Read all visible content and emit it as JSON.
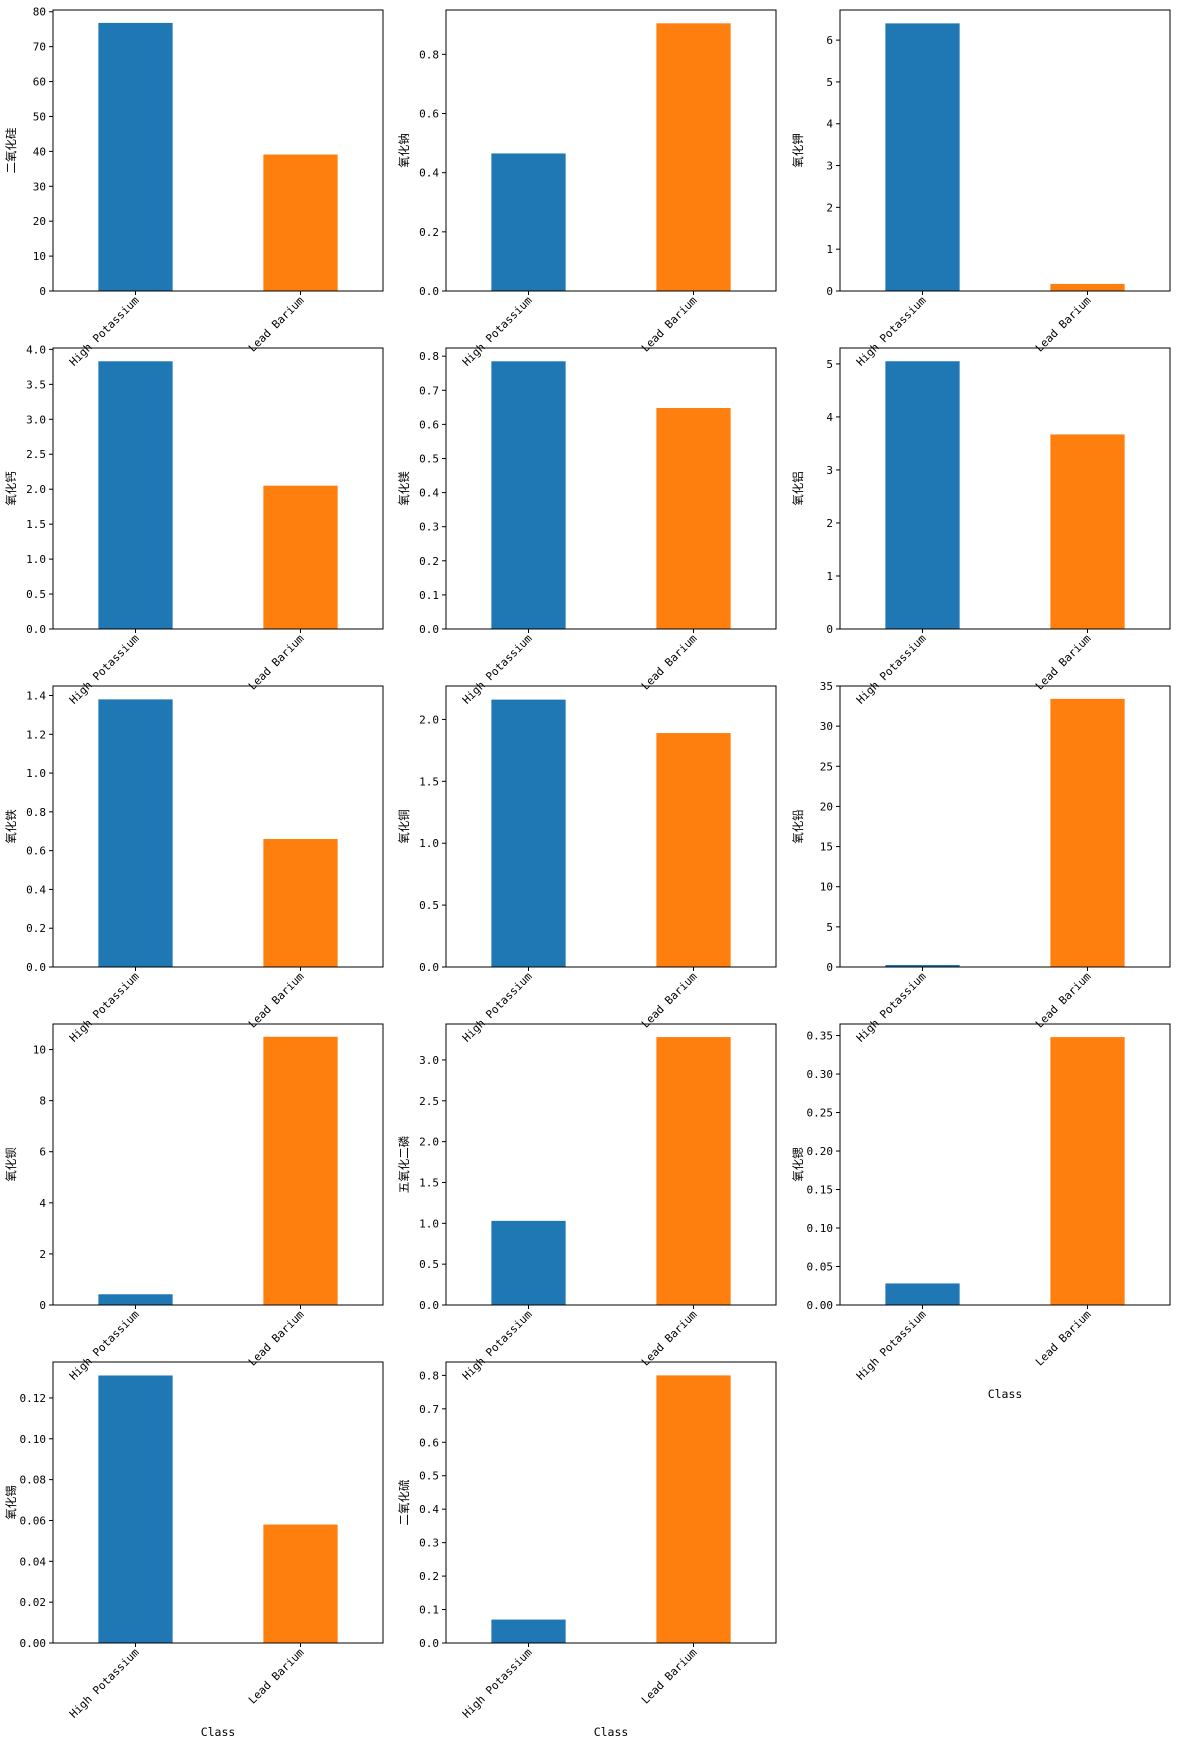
{
  "figure": {
    "colors": {
      "high_potassium": "#1f77b4",
      "lead_barium": "#ff7f0e"
    },
    "x_axis_label": "Class"
  },
  "chart_data": [
    {
      "type": "bar",
      "ylabel": "二氧化硅",
      "categories": [
        "High Potassium",
        "Lead Barium"
      ],
      "values": [
        76.8,
        39.1
      ],
      "ylim": [
        0,
        80.5
      ],
      "yticks": [
        "0",
        "10",
        "20",
        "30",
        "40",
        "50",
        "60",
        "70",
        "80"
      ],
      "xlabel": ""
    },
    {
      "type": "bar",
      "ylabel": "氧化钠",
      "categories": [
        "High Potassium",
        "Lead Barium"
      ],
      "values": [
        0.465,
        0.905
      ],
      "ylim": [
        0,
        0.95
      ],
      "yticks": [
        "0.0",
        "0.2",
        "0.4",
        "0.6",
        "0.8"
      ],
      "xlabel": ""
    },
    {
      "type": "bar",
      "ylabel": "氧化钾",
      "categories": [
        "High Potassium",
        "Lead Barium"
      ],
      "values": [
        6.4,
        0.17
      ],
      "ylim": [
        0,
        6.72
      ],
      "yticks": [
        "0",
        "1",
        "2",
        "3",
        "4",
        "5",
        "6"
      ],
      "xlabel": ""
    },
    {
      "type": "bar",
      "ylabel": "氧化钙",
      "categories": [
        "High Potassium",
        "Lead Barium"
      ],
      "values": [
        3.83,
        2.05
      ],
      "ylim": [
        0,
        4.02
      ],
      "yticks": [
        "0.0",
        "0.5",
        "1.0",
        "1.5",
        "2.0",
        "2.5",
        "3.0",
        "3.5",
        "4.0"
      ],
      "xlabel": ""
    },
    {
      "type": "bar",
      "ylabel": "氧化镁",
      "categories": [
        "High Potassium",
        "Lead Barium"
      ],
      "values": [
        0.785,
        0.648
      ],
      "ylim": [
        0,
        0.824
      ],
      "yticks": [
        "0.0",
        "0.1",
        "0.2",
        "0.3",
        "0.4",
        "0.5",
        "0.6",
        "0.7",
        "0.8"
      ],
      "xlabel": ""
    },
    {
      "type": "bar",
      "ylabel": "氧化铝",
      "categories": [
        "High Potassium",
        "Lead Barium"
      ],
      "values": [
        5.05,
        3.67
      ],
      "ylim": [
        0,
        5.3
      ],
      "yticks": [
        "0",
        "1",
        "2",
        "3",
        "4",
        "5"
      ],
      "xlabel": ""
    },
    {
      "type": "bar",
      "ylabel": "氧化铁",
      "categories": [
        "High Potassium",
        "Lead Barium"
      ],
      "values": [
        1.38,
        0.66
      ],
      "ylim": [
        0,
        1.449
      ],
      "yticks": [
        "0.0",
        "0.2",
        "0.4",
        "0.6",
        "0.8",
        "1.0",
        "1.2",
        "1.4"
      ],
      "xlabel": ""
    },
    {
      "type": "bar",
      "ylabel": "氧化铜",
      "categories": [
        "High Potassium",
        "Lead Barium"
      ],
      "values": [
        2.16,
        1.89
      ],
      "ylim": [
        0,
        2.27
      ],
      "yticks": [
        "0.0",
        "0.5",
        "1.0",
        "1.5",
        "2.0"
      ],
      "xlabel": ""
    },
    {
      "type": "bar",
      "ylabel": "氧化铅",
      "categories": [
        "High Potassium",
        "Lead Barium"
      ],
      "values": [
        0.25,
        33.4
      ],
      "ylim": [
        0,
        35.0
      ],
      "yticks": [
        "0",
        "5",
        "10",
        "15",
        "20",
        "25",
        "30",
        "35"
      ],
      "xlabel": ""
    },
    {
      "type": "bar",
      "ylabel": "氧化钡",
      "categories": [
        "High Potassium",
        "Lead Barium"
      ],
      "values": [
        0.42,
        10.5
      ],
      "ylim": [
        0,
        11.0
      ],
      "yticks": [
        "0",
        "2",
        "4",
        "6",
        "8",
        "10"
      ],
      "xlabel": ""
    },
    {
      "type": "bar",
      "ylabel": "五氧化二磷",
      "categories": [
        "High Potassium",
        "Lead Barium"
      ],
      "values": [
        1.03,
        3.28
      ],
      "ylim": [
        0,
        3.44
      ],
      "yticks": [
        "0.0",
        "0.5",
        "1.0",
        "1.5",
        "2.0",
        "2.5",
        "3.0"
      ],
      "xlabel": ""
    },
    {
      "type": "bar",
      "ylabel": "氧化锶",
      "categories": [
        "High Potassium",
        "Lead Barium"
      ],
      "values": [
        0.028,
        0.348
      ],
      "ylim": [
        0,
        0.365
      ],
      "yticks": [
        "0.00",
        "0.05",
        "0.10",
        "0.15",
        "0.20",
        "0.25",
        "0.30",
        "0.35"
      ],
      "xlabel": "Class"
    },
    {
      "type": "bar",
      "ylabel": "氧化锡",
      "categories": [
        "High Potassium",
        "Lead Barium"
      ],
      "values": [
        0.131,
        0.058
      ],
      "ylim": [
        0,
        0.1376
      ],
      "yticks": [
        "0.00",
        "0.02",
        "0.04",
        "0.06",
        "0.08",
        "0.10",
        "0.12"
      ],
      "xlabel": "Class"
    },
    {
      "type": "bar",
      "ylabel": "二氧化硫",
      "categories": [
        "High Potassium",
        "Lead Barium"
      ],
      "values": [
        0.07,
        0.8
      ],
      "ylim": [
        0,
        0.84
      ],
      "yticks": [
        "0.0",
        "0.1",
        "0.2",
        "0.3",
        "0.4",
        "0.5",
        "0.6",
        "0.7",
        "0.8"
      ],
      "xlabel": "Class"
    }
  ]
}
